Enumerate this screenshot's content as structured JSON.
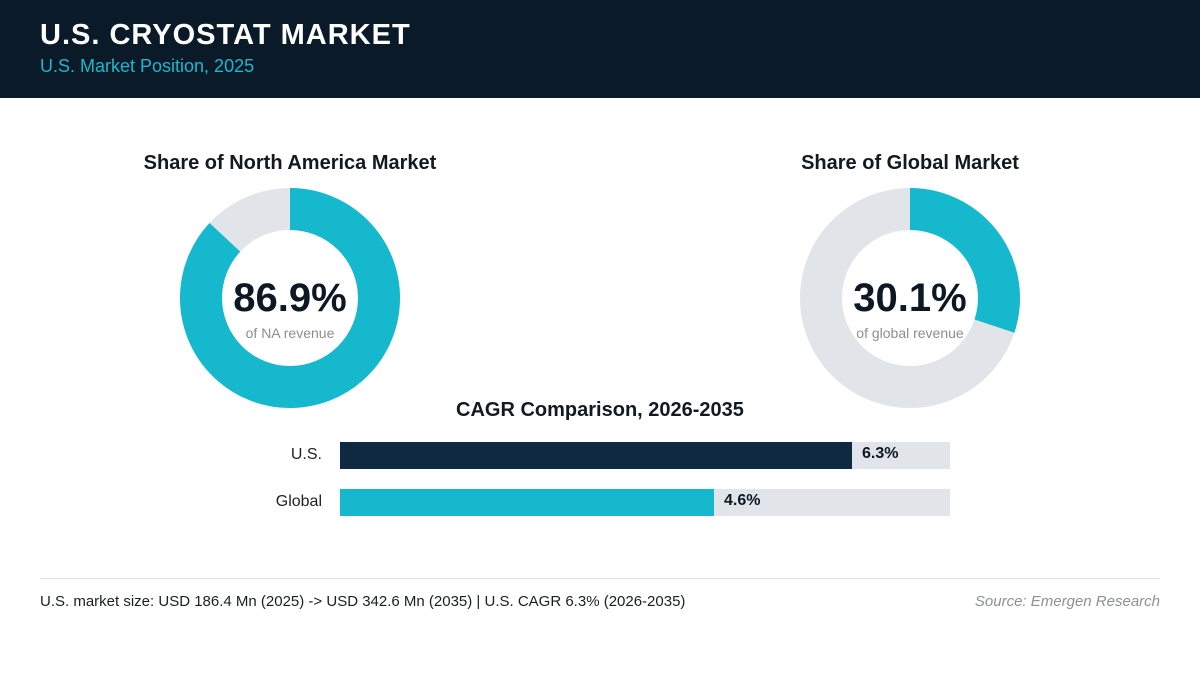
{
  "header": {
    "title": "U.S. CRYOSTAT MARKET",
    "subtitle": "U.S. Market Position, 2025"
  },
  "colors": {
    "header_bg": "#0b1a29",
    "accent": "#15b8cc",
    "dark": "#0e2940",
    "track": "#e1e5e9"
  },
  "chart_data": [
    {
      "type": "pie",
      "title": "Share of North America Market",
      "value": 86.9,
      "value_label": "86.9%",
      "caption": "of NA revenue"
    },
    {
      "type": "pie",
      "title": "Share of Global Market",
      "value": 30.1,
      "value_label": "30.1%",
      "caption": "of global revenue"
    },
    {
      "type": "bar",
      "title": "CAGR Comparison, 2026-2035",
      "categories": [
        "U.S.",
        "Global"
      ],
      "values": [
        6.3,
        4.6
      ],
      "value_labels": [
        "6.3%",
        "4.6%"
      ],
      "xlim": [
        0,
        7.5
      ]
    }
  ],
  "footer": {
    "note": "U.S. market size: USD 186.4 Mn (2025) -> USD 342.6 Mn (2035)  |  U.S. CAGR 6.3% (2026-2035)",
    "source": "Source: Emergen Research"
  }
}
